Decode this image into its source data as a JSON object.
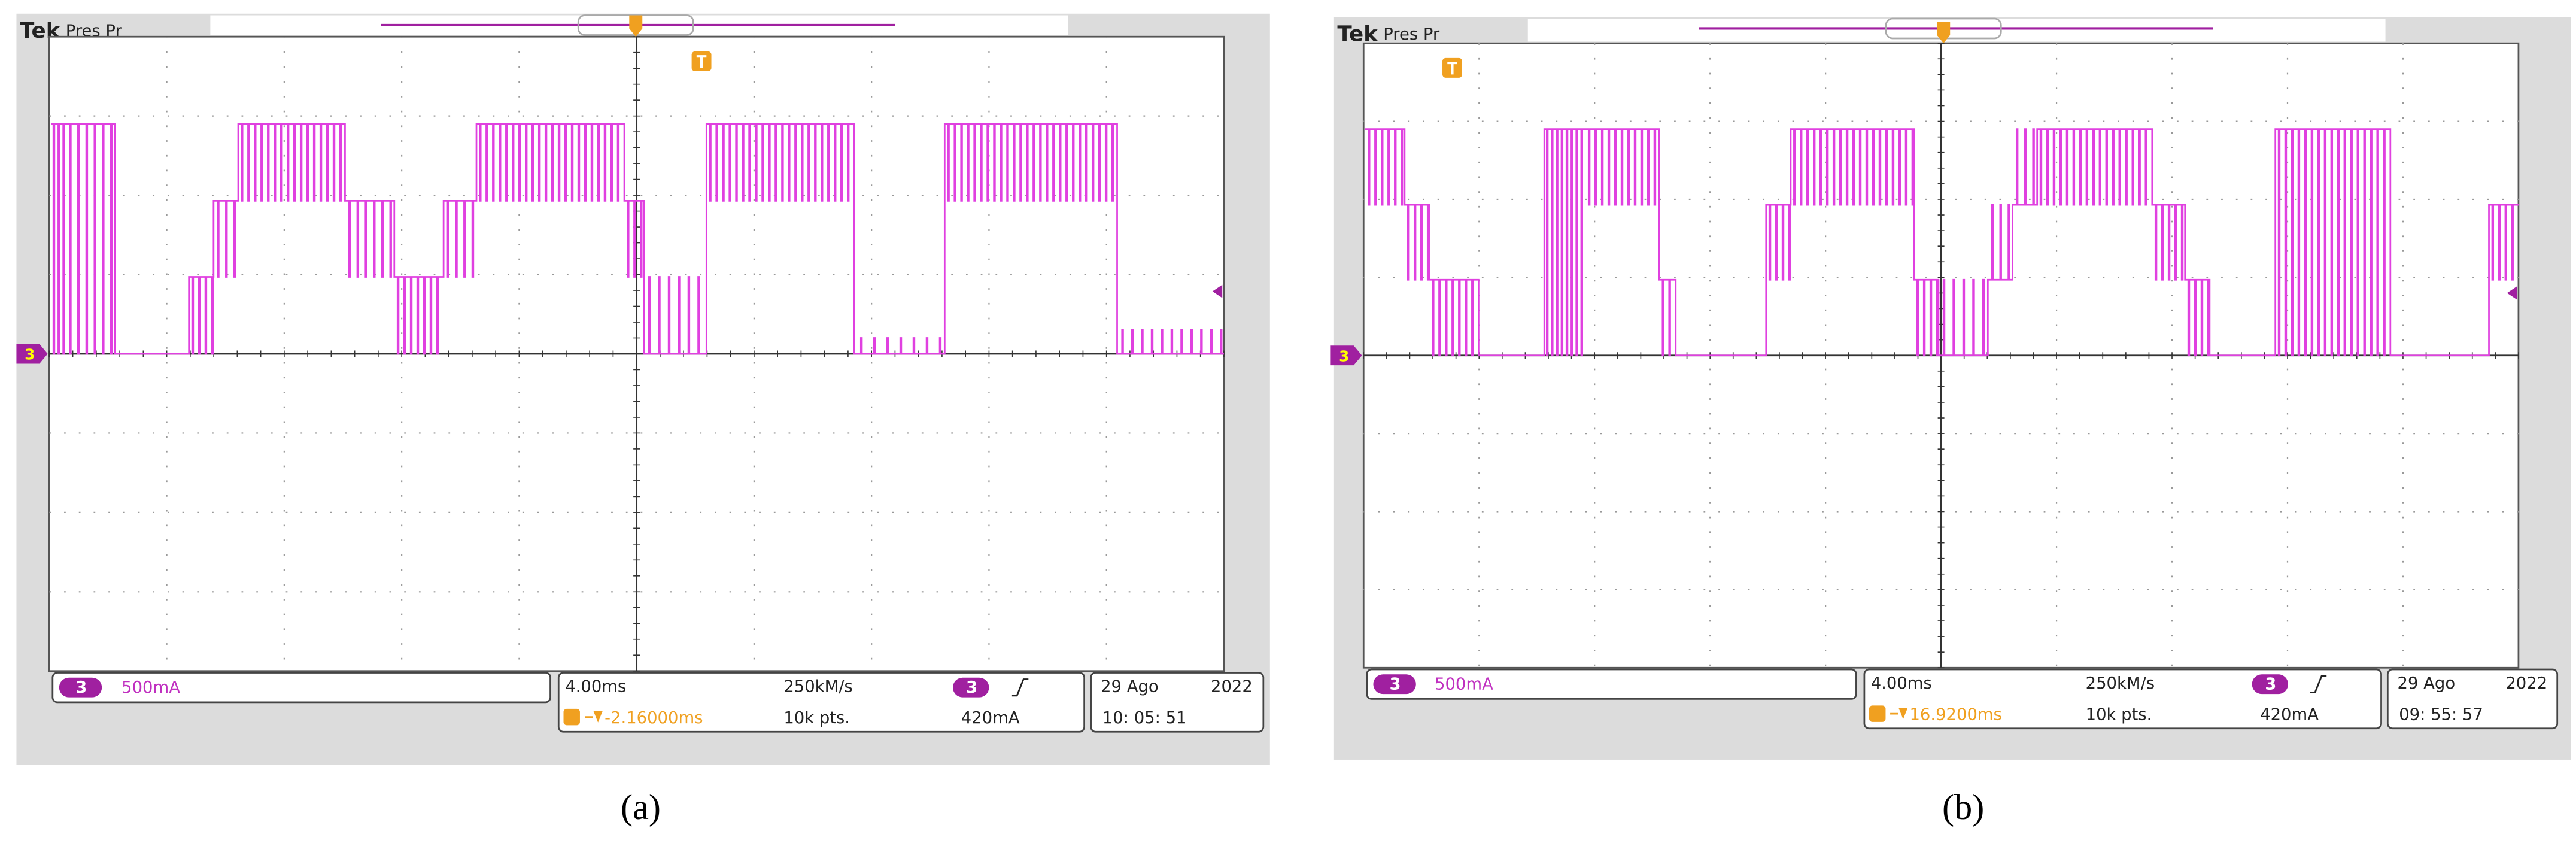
{
  "panels": [
    {
      "brand": "Tek",
      "mode": "Pres Pr",
      "channel": "3",
      "scale": "500mA",
      "timebase": "4.00ms",
      "sample_rate": "250kM/s",
      "trigger_level": "420mA",
      "trigger_position": "-2.16000ms",
      "record_length": "10k pts.",
      "date": "29 Ago",
      "year": "2022",
      "time": "10: 05: 51",
      "caption": "(a)"
    },
    {
      "brand": "Tek",
      "mode": "Pres Pr",
      "channel": "3",
      "scale": "500mA",
      "timebase": "4.00ms",
      "sample_rate": "250kM/s",
      "trigger_level": "420mA",
      "trigger_position": "16.9200ms",
      "record_length": "10k pts.",
      "date": "29 Ago",
      "year": "2022",
      "time": "09: 55: 57",
      "caption": "(b)"
    }
  ]
}
